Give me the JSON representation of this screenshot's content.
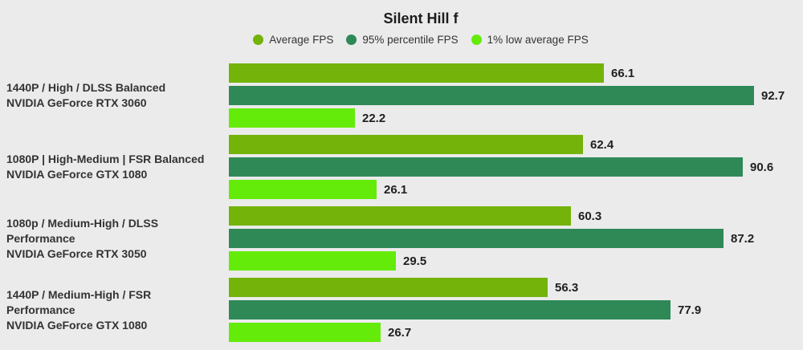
{
  "colors": {
    "background": "#ebebeb",
    "title_text": "#1c1c1c",
    "label_text": "#333333",
    "value_text": "#1f1f1f",
    "average_fps": "#73b30a",
    "percentile_95_fps": "#2e8957",
    "low_1_fps": "#64eb0a"
  },
  "chart_data": {
    "type": "bar",
    "orientation": "horizontal",
    "title": "Silent Hill f",
    "xlabel": "",
    "ylabel": "",
    "xlim": [
      0,
      100
    ],
    "grid": false,
    "legend_position": "top-center",
    "legend": [
      {
        "label": "Average FPS",
        "color": "#73b30a"
      },
      {
        "label": "95% percentile FPS",
        "color": "#2e8957"
      },
      {
        "label": "1% low average FPS",
        "color": "#64eb0a"
      }
    ],
    "categories": [
      {
        "settings": "1440P / High / DLSS Balanced",
        "gpu": "NVIDIA GeForce RTX 3060"
      },
      {
        "settings": "1080P | High-Medium | FSR Balanced",
        "gpu": "NVIDIA GeForce GTX 1080"
      },
      {
        "settings": "1080p / Medium-High / DLSS Performance",
        "gpu": "NVIDIA GeForce RTX 3050"
      },
      {
        "settings": "1440P / Medium-High / FSR Performance",
        "gpu": "NVIDIA GeForce GTX 1080"
      }
    ],
    "series": [
      {
        "name": "Average FPS",
        "color": "#73b30a",
        "values": [
          66.1,
          62.4,
          60.3,
          56.3
        ]
      },
      {
        "name": "95% percentile FPS",
        "color": "#2e8957",
        "values": [
          92.7,
          90.6,
          87.2,
          77.9
        ]
      },
      {
        "name": "1% low average FPS",
        "color": "#64eb0a",
        "values": [
          22.2,
          26.1,
          29.5,
          26.7
        ]
      }
    ]
  }
}
